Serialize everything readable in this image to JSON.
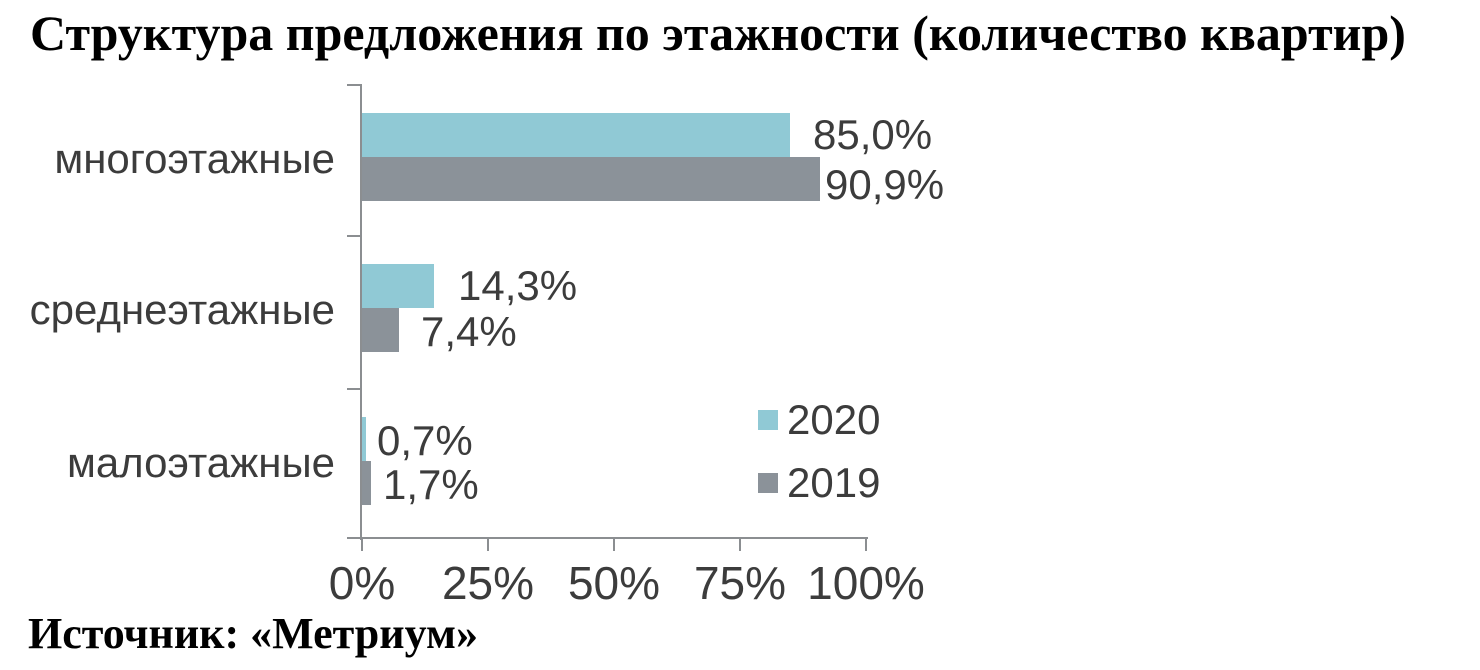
{
  "title": "Структура предложения по этажности (количество квартир)",
  "source": "Источник: «Метриум»",
  "colors": {
    "series2020": "#90c9d5",
    "series2019": "#8b9299",
    "axis": "#8b8e91",
    "chart_text": "#3c3c3c",
    "title_text": "#000000"
  },
  "legend": [
    {
      "label": "2020",
      "color_key": "series2020"
    },
    {
      "label": "2019",
      "color_key": "series2019"
    }
  ],
  "chart_data": {
    "type": "bar",
    "orientation": "horizontal",
    "title": "Структура предложения по этажности (количество квартир)",
    "categories": [
      "многоэтажные",
      "среднеэтажные",
      "малоэтажные"
    ],
    "series": [
      {
        "name": "2020",
        "values": [
          85.0,
          14.3,
          0.7
        ],
        "labels": [
          "85,0%",
          "14,3%",
          "0,7%"
        ]
      },
      {
        "name": "2019",
        "values": [
          90.9,
          7.4,
          1.7
        ],
        "labels": [
          "90,9%",
          "7,4%",
          "1,7%"
        ]
      }
    ],
    "xlabel": "",
    "ylabel": "",
    "x_range": [
      0,
      100
    ],
    "x_ticks": [
      "0%",
      "25%",
      "50%",
      "75%",
      "100%"
    ],
    "grid": false,
    "legend_position": "inside-bottom-right",
    "value_labels": true,
    "source": "Источник: «Метриум»"
  }
}
